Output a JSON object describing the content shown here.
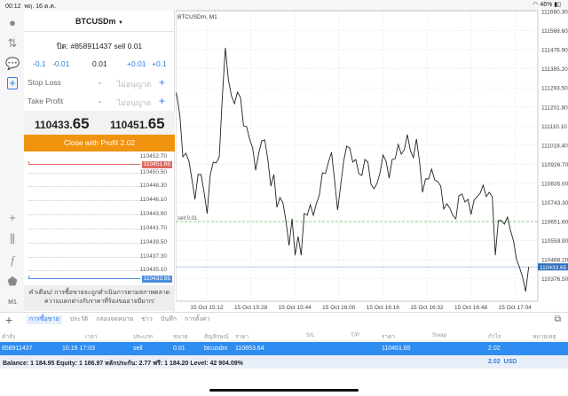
{
  "status": {
    "time": "00:12",
    "date": "พฤ. 16 ต.ค.",
    "battery": "46%"
  },
  "panel": {
    "symbol": "BTCUSDm",
    "order_line": "ปิด: #858911437 sell 0.01",
    "steps": [
      "-0.1",
      "-0.01",
      "0.01",
      "+0.01",
      "+0.1"
    ],
    "stop_loss": {
      "label": "Stop Loss",
      "value": "ไม่อนุญาต",
      "minus": "-",
      "plus": "+"
    },
    "take_profit": {
      "label": "Take Profit",
      "value": "ไม่อนุญาต",
      "minus": "-",
      "plus": "+"
    },
    "bid": {
      "main": "110433.",
      "big": "65"
    },
    "ask": {
      "main": "110451.",
      "big": "65"
    },
    "close_label": "Close with Profit 2.02",
    "depth_levels": [
      "110452.70",
      "110450.50",
      "110448.30",
      "110446.10",
      "110443.90",
      "110441.70",
      "110439.50",
      "110437.30",
      "110435.10"
    ],
    "depth_ask": "110451.65",
    "depth_bid": "110433.65",
    "warning": "คำเตือน! การซื้อขายจะถูกดำเนินการตามสภาพตลาด ความแตกต่างกับราคาที่ร้องขออาจมีมาก!"
  },
  "sidebar": {
    "timeframe": "M1",
    "icons": [
      "account-icon",
      "trade-arrows-icon",
      "chat-icon",
      "new-order-icon",
      "crosshair-icon",
      "candles-icon",
      "function-icon",
      "objects-icon"
    ]
  },
  "chart_data": {
    "type": "line",
    "title": "BTCUSDm, M1",
    "x_start": "15 Oct 15:00",
    "x_end": "15 Oct 17:09",
    "x_ticks": [
      "15 Oct 15:12",
      "15 Oct 15:28",
      "15 Oct 15:44",
      "15 Oct 16:00",
      "15 Oct 16:16",
      "15 Oct 16:32",
      "15 Oct 16:48",
      "15 Oct 17:04"
    ],
    "y_ticks": [
      "111660.30",
      "111568.60",
      "111476.90",
      "111385.20",
      "111293.50",
      "111201.80",
      "111110.10",
      "111018.40",
      "110926.70",
      "110835.00",
      "110743.30",
      "110651.60",
      "110559.90",
      "110468.20",
      "110376.50"
    ],
    "ylim": [
      110376.5,
      111660.3
    ],
    "grid": true,
    "order_line": {
      "label": "sell 0.01",
      "price": 110651.6,
      "color": "#7fc47f"
    },
    "bid_line": {
      "price": 110433.65,
      "label": "110433.65",
      "color": "#2f6fc0"
    },
    "values": [
      111298.6,
      111256.1,
      111162.4,
      110962.4,
      110979.5,
      110941.2,
      110851.8,
      110758.2,
      110877.3,
      110877.3,
      110792.2,
      110690.1,
      110873.1,
      110936.9,
      110932.7,
      110962.4,
      111247.5,
      111485.8,
      111332.6,
      111256.1,
      111217.8,
      111273.1,
      111247.5,
      111111.4,
      111107.1,
      111047.6,
      111005.0,
      110898.6,
      110979.5,
      111039.0,
      111043.3,
      110949.7,
      110822.0,
      110877.3,
      110719.9,
      110766.7,
      110741.2,
      110651.8,
      110536.9,
      110664.6,
      110490.1,
      110579.5,
      110490.1,
      110690.1,
      110681.6,
      110732.7,
      110681.6,
      110736.9,
      110779.5,
      110885.9,
      110881.6,
      110936.9,
      110983.7,
      110851.8,
      110707.1,
      110822.0,
      110941.2,
      111013.5,
      111005.0,
      110936.9,
      110949.7,
      110881.6,
      110873.1,
      110949.7,
      110936.9,
      110830.5,
      110809.3,
      110834.8,
      110885.9,
      110971.0,
      110941.2,
      110860.3,
      110949.7,
      110953.9,
      111022.0,
      110975.2,
      110996.5,
      111068.8,
      110992.2,
      110958.2,
      111047.6,
      110941.2,
      110792.2,
      110856.1,
      110856.1,
      110902.9,
      110851.8,
      110843.3,
      110822.0,
      110711.4,
      110736.9,
      110715.6,
      110681.6,
      110664.6,
      110775.2,
      110783.7,
      110745.4,
      110758.2,
      110685.9,
      110753.9,
      110771.0,
      110788.0,
      110826.3,
      110771.0,
      110792.2,
      110771.0,
      110490.1,
      110656.1,
      110656.1,
      110639.1,
      110673.1,
      110609.3,
      110558.2,
      110468.8,
      110430.5,
      110383.7,
      110315.7,
      110433.65
    ]
  },
  "tabs": [
    "การซื้อขาย",
    "ประวัติ",
    "กล่องจดหมาย",
    "ข่าว",
    "บันทึก",
    "การตั้งค่า"
  ],
  "table": {
    "headers": [
      "คำสั่ง",
      "เวลา",
      "ประเภท",
      "ขนาด",
      "สัญลักษณ์",
      "ราคา",
      "S/L",
      "T/P",
      "ราคา",
      "Swap",
      "กำไร",
      "หมายเหตุ"
    ],
    "row": [
      "858911437",
      "10.15 17:03",
      "sell",
      "0.01",
      "btcusdm",
      "110653.64",
      "",
      "",
      "110451.65",
      "",
      "2.02",
      ""
    ],
    "balance": "Balance: 1 184.95 Equity: 1 186.97 หลักประกัน: 2.77 ฟรี: 1 184.20 Level: 42 904.09%",
    "total_profit": "2.02",
    "currency": "USD"
  }
}
